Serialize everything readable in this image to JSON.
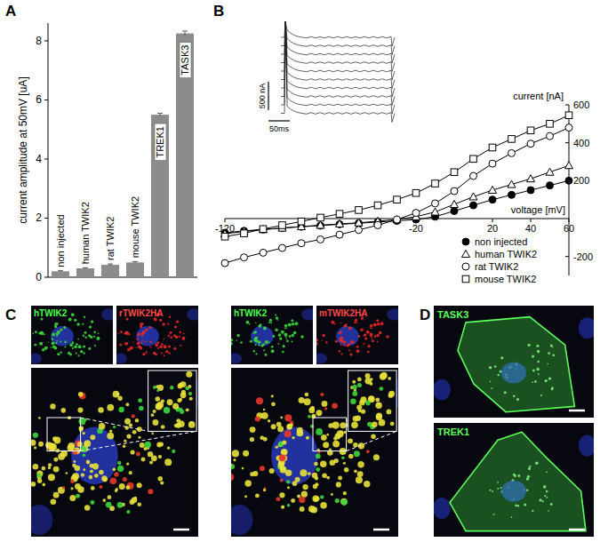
{
  "panels": [
    "A",
    "B",
    "C",
    "D"
  ],
  "chart_data": [
    {
      "type": "bar",
      "y_label": "current amplitude at 50mV [uA]",
      "categories": [
        "non injected",
        "human TWIK2",
        "rat TWIK2",
        "mouse TWIK2",
        "TREK1",
        "TASK3"
      ],
      "values": [
        0.2,
        0.3,
        0.42,
        0.5,
        5.5,
        8.25
      ],
      "errors": [
        0.02,
        0.02,
        0.03,
        0.03,
        0.05,
        0.08
      ],
      "color": "#8c8c8c",
      "ylim": [
        0,
        8.6
      ],
      "yticks": [
        0,
        2,
        4,
        6,
        8
      ]
    },
    {
      "type": "line",
      "x_label": "voltage [mV]",
      "y_label": "current [nA]",
      "x": [
        -120,
        -110,
        -100,
        -90,
        -80,
        -70,
        -60,
        -50,
        -40,
        -30,
        -20,
        -10,
        0,
        10,
        20,
        30,
        40,
        50,
        60
      ],
      "series": [
        {
          "name": "non injected",
          "color": "#000000",
          "marker": "filled_circle",
          "values": [
            -75,
            -65,
            -57,
            -50,
            -43,
            -37,
            -30,
            -25,
            -18,
            -12,
            -5,
            10,
            40,
            70,
            100,
            125,
            150,
            175,
            200
          ]
        },
        {
          "name": "human TWIK2",
          "color": "#000000",
          "marker": "open_triangle",
          "values": [
            -80,
            -68,
            -58,
            -50,
            -42,
            -35,
            -28,
            -22,
            -14,
            -5,
            10,
            35,
            75,
            115,
            150,
            180,
            210,
            245,
            280
          ]
        },
        {
          "name": "rat TWIK2",
          "color": "#000000",
          "marker": "open_circle",
          "values": [
            -235,
            -205,
            -180,
            -155,
            -130,
            -110,
            -85,
            -60,
            -35,
            -5,
            30,
            80,
            145,
            225,
            290,
            345,
            395,
            435,
            480
          ]
        },
        {
          "name": "mouse TWIK2",
          "color": "#000000",
          "marker": "open_square",
          "values": [
            -95,
            -78,
            -55,
            -35,
            -15,
            5,
            25,
            45,
            70,
            100,
            135,
            185,
            245,
            315,
            375,
            420,
            465,
            500,
            545
          ]
        }
      ],
      "xlim": [
        -120,
        60
      ],
      "ylim": [
        -300,
        600
      ],
      "xticks": [
        -120,
        -20,
        20,
        40,
        60
      ],
      "yticks": [
        -200,
        200,
        400,
        600
      ],
      "legend": "lower right",
      "annotations": [
        "500 nA",
        "50ms"
      ]
    }
  ],
  "images": {
    "C": {
      "groups": [
        [
          "hTWIK2",
          "rTWIK2HA"
        ],
        [
          "hTWIK2",
          "mTWIK2HA"
        ]
      ]
    },
    "D": {
      "labels": [
        "TASK3",
        "TREK1"
      ]
    }
  }
}
